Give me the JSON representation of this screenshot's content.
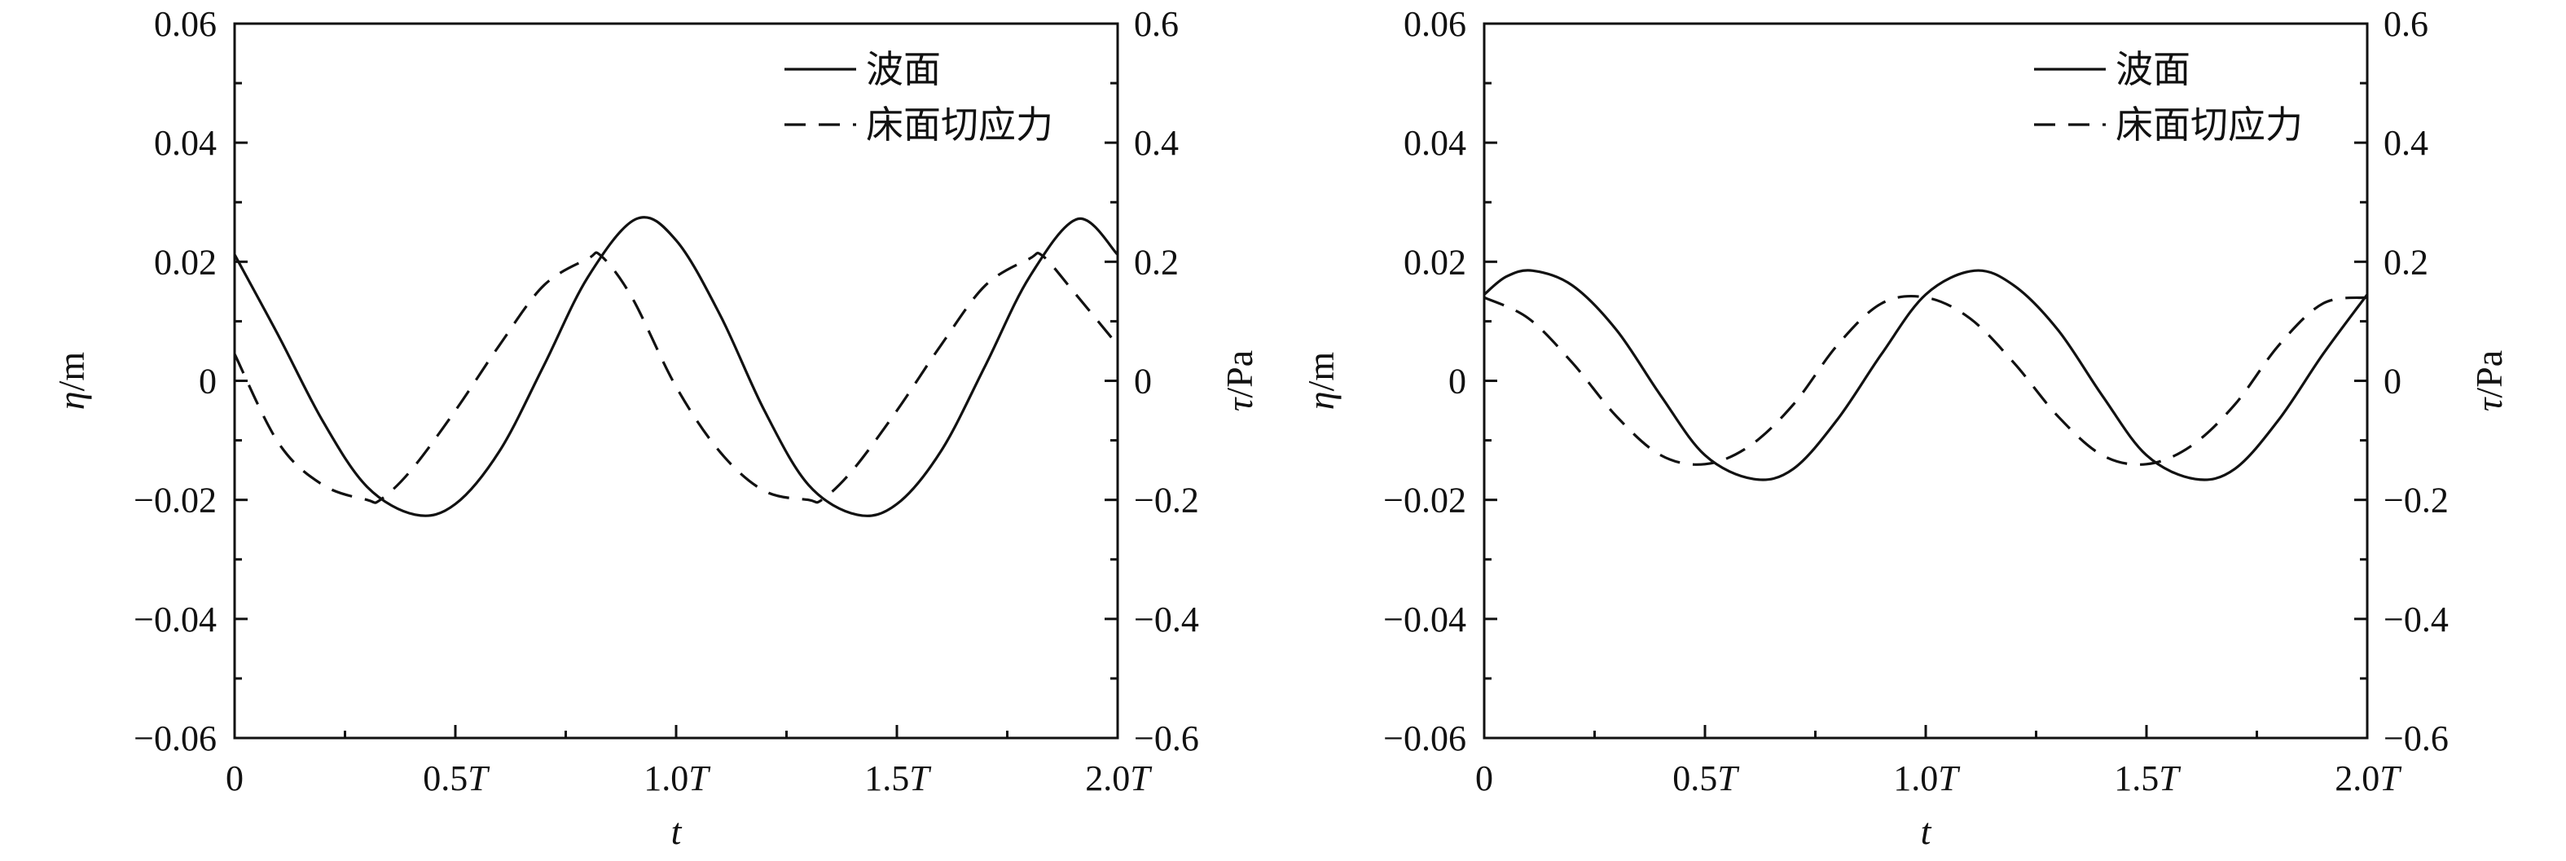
{
  "chart_data": [
    {
      "type": "line",
      "xlabel": "t",
      "ylabel_left": "η/m",
      "ylabel_right": "τ/Pa",
      "xlim": [
        0,
        2.0
      ],
      "ylim_left": [
        -0.06,
        0.06
      ],
      "ylim_right": [
        -0.6,
        0.6
      ],
      "x_ticks": [
        0,
        0.5,
        1.0,
        1.5,
        2.0
      ],
      "x_tick_labels": [
        [
          "0",
          ""
        ],
        [
          "0.5",
          "T"
        ],
        [
          "1.0",
          "T"
        ],
        [
          "1.5",
          "T"
        ],
        [
          "2.0",
          "T"
        ]
      ],
      "y_ticks_left": [
        0.06,
        0.04,
        0.02,
        0,
        -0.02,
        -0.04,
        -0.06
      ],
      "y_tick_labels_left": [
        "0.06",
        "0.04",
        "0.02",
        "0",
        "−0.02",
        "−0.04",
        "−0.06"
      ],
      "y_ticks_right": [
        0.6,
        0.4,
        0.2,
        0,
        -0.2,
        -0.4,
        -0.6
      ],
      "y_tick_labels_right": [
        "0.6",
        "0.4",
        "0.2",
        "0",
        "−0.2",
        "−0.4",
        "−0.6"
      ],
      "legend": [
        "波面",
        "床面切应力"
      ],
      "legend_position": "top-right",
      "series": [
        {
          "name": "波面",
          "axis": "left",
          "style": "solid",
          "x": [
            0,
            0.1,
            0.2,
            0.3,
            0.41,
            0.5,
            0.6,
            0.7,
            0.8,
            0.91,
            1.0,
            1.1,
            1.2,
            1.3,
            1.41,
            1.5,
            1.6,
            1.7,
            1.8,
            1.91,
            2.0
          ],
          "y": [
            0.0212,
            0.0075,
            -0.0068,
            -0.0178,
            -0.0225,
            -0.0207,
            -0.0118,
            0.0025,
            0.0174,
            0.0272,
            0.0236,
            0.011,
            -0.005,
            -0.0175,
            -0.0225,
            -0.0207,
            -0.0118,
            0.0025,
            0.0174,
            0.0272,
            0.0212
          ]
        },
        {
          "name": "床面切应力",
          "axis": "right",
          "style": "dashed",
          "x": [
            0,
            0.1,
            0.2,
            0.3,
            0.33,
            0.4,
            0.5,
            0.6,
            0.7,
            0.8,
            0.83,
            0.9,
            1.0,
            1.1,
            1.2,
            1.3,
            1.33,
            1.4,
            1.5,
            1.6,
            1.7,
            1.8,
            1.83,
            1.9,
            2.0
          ],
          "y": [
            0.045,
            -0.105,
            -0.175,
            -0.2,
            -0.2,
            -0.15,
            -0.05,
            0.06,
            0.16,
            0.205,
            0.21,
            0.14,
            -0.01,
            -0.12,
            -0.185,
            -0.2,
            -0.2,
            -0.15,
            -0.05,
            0.06,
            0.16,
            0.205,
            0.21,
            0.15,
            0.06
          ]
        }
      ]
    },
    {
      "type": "line",
      "xlabel": "t",
      "ylabel_left": "η/m",
      "ylabel_right": "τ/Pa",
      "xlim": [
        0,
        2.0
      ],
      "ylim_left": [
        -0.06,
        0.06
      ],
      "ylim_right": [
        -0.6,
        0.6
      ],
      "x_ticks": [
        0,
        0.5,
        1.0,
        1.5,
        2.0
      ],
      "x_tick_labels": [
        [
          "0",
          ""
        ],
        [
          "0.5",
          "T"
        ],
        [
          "1.0",
          "T"
        ],
        [
          "1.5",
          "T"
        ],
        [
          "2.0",
          "T"
        ]
      ],
      "y_ticks_left": [
        0.06,
        0.04,
        0.02,
        0,
        -0.02,
        -0.04,
        -0.06
      ],
      "y_tick_labels_left": [
        "0.06",
        "0.04",
        "0.02",
        "0",
        "−0.02",
        "−0.04",
        "−0.06"
      ],
      "y_ticks_right": [
        0.6,
        0.4,
        0.2,
        0,
        -0.2,
        -0.4,
        -0.6
      ],
      "y_tick_labels_right": [
        "0.6",
        "0.4",
        "0.2",
        "0",
        "−0.2",
        "−0.4",
        "−0.6"
      ],
      "legend": [
        "波面",
        "床面切应力"
      ],
      "legend_position": "top-right",
      "series": [
        {
          "name": "波面",
          "axis": "left",
          "style": "solid",
          "x": [
            0,
            0.05,
            0.11,
            0.2,
            0.3,
            0.4,
            0.5,
            0.61,
            0.7,
            0.8,
            0.9,
            1.0,
            1.11,
            1.2,
            1.3,
            1.4,
            1.5,
            1.61,
            1.7,
            1.8,
            1.9,
            2.0
          ],
          "y": [
            0.0145,
            0.0175,
            0.0185,
            0.016,
            0.0085,
            -0.0025,
            -0.0125,
            -0.0165,
            -0.0148,
            -0.0065,
            0.0045,
            0.0145,
            0.0185,
            0.016,
            0.0085,
            -0.0025,
            -0.0125,
            -0.0165,
            -0.0148,
            -0.0065,
            0.0045,
            0.0145
          ]
        },
        {
          "name": "床面切应力",
          "axis": "right",
          "style": "dashed",
          "x": [
            0,
            0.1,
            0.2,
            0.3,
            0.4,
            0.5,
            0.6,
            0.7,
            0.8,
            0.9,
            1.0,
            1.1,
            1.2,
            1.3,
            1.4,
            1.5,
            1.6,
            1.7,
            1.8,
            1.9,
            2.0
          ],
          "y": [
            0.14,
            0.105,
            0.03,
            -0.06,
            -0.125,
            -0.14,
            -0.11,
            -0.04,
            0.06,
            0.13,
            0.14,
            0.105,
            0.03,
            -0.06,
            -0.125,
            -0.14,
            -0.11,
            -0.04,
            0.06,
            0.13,
            0.14
          ]
        }
      ]
    }
  ]
}
